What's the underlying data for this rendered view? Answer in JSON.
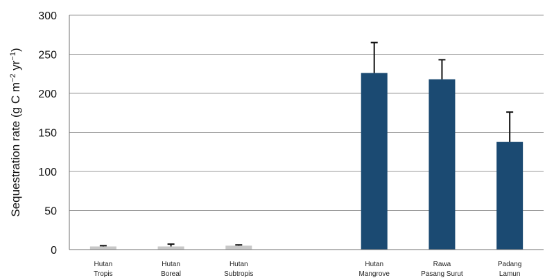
{
  "chart_data": {
    "type": "bar",
    "title": "",
    "xlabel": "",
    "ylabel": "Sequestration rate (g C m",
    "ylabel_sup1": "−2",
    "ylabel_mid": " yr",
    "ylabel_sup2": "−1",
    "ylabel_end": ")",
    "ylim": [
      0,
      300
    ],
    "yticks": [
      0,
      50,
      100,
      150,
      200,
      250,
      300
    ],
    "grid": true,
    "categories": [
      [
        "Hutan",
        "Tropis"
      ],
      [
        "Hutan",
        "Boreal"
      ],
      [
        "Hutan",
        "Subtropis"
      ],
      [
        "",
        ""
      ],
      [
        "Hutan",
        "Mangrove"
      ],
      [
        "Rawa",
        "Pasang Surut"
      ],
      [
        "Padang",
        "Lamun"
      ]
    ],
    "values": [
      4,
      4,
      5,
      null,
      226,
      218,
      138
    ],
    "errors": [
      1,
      3,
      1,
      null,
      39,
      25,
      38
    ],
    "colors": [
      "#c8c8c8",
      "#c8c8c8",
      "#c8c8c8",
      null,
      "#1b4a72",
      "#1b4a72",
      "#1b4a72"
    ]
  }
}
